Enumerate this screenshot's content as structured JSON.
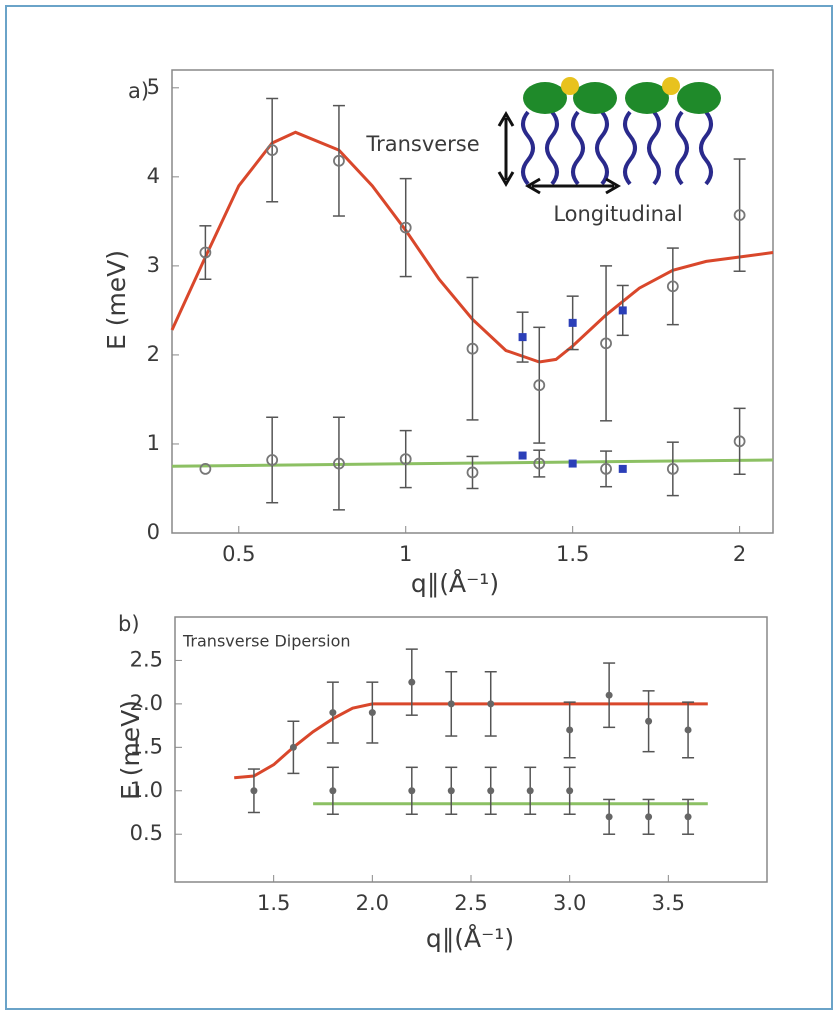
{
  "chart_data": [
    {
      "type": "scatter",
      "annotations": [
        "a)",
        "Transverse",
        "Longitudinal"
      ],
      "x_label": "q∥(Å⁻¹)",
      "y_label": "E (meV)",
      "xlim": [
        0.3,
        2.1
      ],
      "ylim": [
        0,
        5.2
      ],
      "xticks": [
        0.5,
        1,
        1.5,
        2
      ],
      "yticks": [
        0,
        1,
        2,
        3,
        4,
        5
      ],
      "series": [
        {
          "kind": "line",
          "color": "#d9472b",
          "x": [
            0.3,
            0.4,
            0.5,
            0.6,
            0.67,
            0.8,
            0.9,
            1.0,
            1.1,
            1.2,
            1.3,
            1.4,
            1.45,
            1.5,
            1.6,
            1.7,
            1.8,
            1.9,
            2.0,
            2.1
          ],
          "values": [
            2.28,
            3.1,
            3.9,
            4.38,
            4.5,
            4.3,
            3.9,
            3.4,
            2.85,
            2.4,
            2.05,
            1.92,
            1.95,
            2.1,
            2.45,
            2.75,
            2.95,
            3.05,
            3.1,
            3.15
          ]
        },
        {
          "kind": "line",
          "color": "#8cc063",
          "x": [
            0.3,
            2.1
          ],
          "values": [
            0.75,
            0.82
          ]
        },
        {
          "kind": "errorbar",
          "marker": "circle",
          "color": "#777777",
          "x": [
            0.4,
            0.6,
            0.8,
            1.0,
            1.2,
            1.4,
            1.6,
            1.8,
            2.0
          ],
          "values": [
            3.15,
            4.3,
            4.18,
            3.43,
            2.07,
            1.66,
            2.13,
            2.77,
            3.57
          ],
          "errors": [
            0.3,
            0.58,
            0.62,
            0.55,
            0.8,
            0.65,
            0.87,
            0.43,
            0.63
          ]
        },
        {
          "kind": "errorbar",
          "marker": "circle",
          "color": "#777777",
          "x": [
            0.4,
            0.6,
            0.8,
            1.0,
            1.2,
            1.4,
            1.6,
            1.8,
            2.0
          ],
          "values": [
            0.72,
            0.82,
            0.78,
            0.83,
            0.68,
            0.78,
            0.72,
            0.72,
            1.03
          ],
          "errors": [
            null,
            0.48,
            0.52,
            0.32,
            0.18,
            0.15,
            0.2,
            0.3,
            0.37
          ]
        },
        {
          "kind": "errorbar",
          "marker": "square",
          "color": "#2b3fb8",
          "x": [
            1.35,
            1.5,
            1.65
          ],
          "values": [
            2.2,
            2.36,
            2.5
          ],
          "errors": [
            0.28,
            0.3,
            0.28
          ]
        },
        {
          "kind": "errorbar",
          "marker": "square",
          "color": "#2b3fb8",
          "x": [
            1.35,
            1.5,
            1.65
          ],
          "values": [
            0.87,
            0.78,
            0.72
          ],
          "errors": [
            null,
            null,
            null
          ]
        }
      ]
    },
    {
      "type": "scatter",
      "title": "Transverse Dipersion",
      "annotations": [
        "b)"
      ],
      "x_label": "q∥(Å⁻¹)",
      "y_label": "E (meV)",
      "xlim": [
        1.0,
        4.0
      ],
      "ylim": [
        -0.05,
        3.0
      ],
      "xticks": [
        1.5,
        {
          "value": 2,
          "label": "2.0"
        },
        2.5,
        {
          "value": 3,
          "label": "3.0"
        },
        3.5
      ],
      "yticks": [
        0.5,
        {
          "value": 1,
          "label": "1.0"
        },
        1.5,
        {
          "value": 2,
          "label": "2.0"
        },
        2.5
      ],
      "series": [
        {
          "kind": "line",
          "color": "#d9472b",
          "x": [
            1.3,
            1.4,
            1.5,
            1.6,
            1.7,
            1.8,
            1.9,
            2.0,
            3.7
          ],
          "values": [
            1.15,
            1.17,
            1.3,
            1.5,
            1.68,
            1.83,
            1.95,
            2.0,
            2.0
          ]
        },
        {
          "kind": "line",
          "color": "#8cc063",
          "x": [
            1.7,
            3.7
          ],
          "values": [
            0.85,
            0.85
          ]
        },
        {
          "kind": "errorbar",
          "marker": "dot",
          "color": "#666666",
          "x": [
            1.4,
            1.6,
            1.8,
            2.0,
            2.2,
            2.4,
            2.6,
            3.0,
            3.2,
            3.4,
            3.6
          ],
          "values": [
            1.0,
            1.5,
            1.9,
            1.9,
            2.25,
            2.0,
            2.0,
            1.7,
            2.1,
            1.8,
            1.7
          ],
          "errors": [
            0.25,
            0.3,
            0.35,
            0.35,
            0.38,
            0.37,
            0.37,
            0.32,
            0.37,
            0.35,
            0.32
          ]
        },
        {
          "kind": "errorbar",
          "marker": "dot",
          "color": "#666666",
          "x": [
            1.8,
            2.2,
            2.4,
            2.6,
            2.8,
            3.0,
            3.2,
            3.4,
            3.6
          ],
          "values": [
            1.0,
            1.0,
            1.0,
            1.0,
            1.0,
            1.0,
            0.7,
            0.7,
            0.7
          ],
          "errors": [
            0.27,
            0.27,
            0.27,
            0.27,
            0.27,
            0.27,
            0.2,
            0.2,
            0.2
          ]
        }
      ]
    }
  ]
}
